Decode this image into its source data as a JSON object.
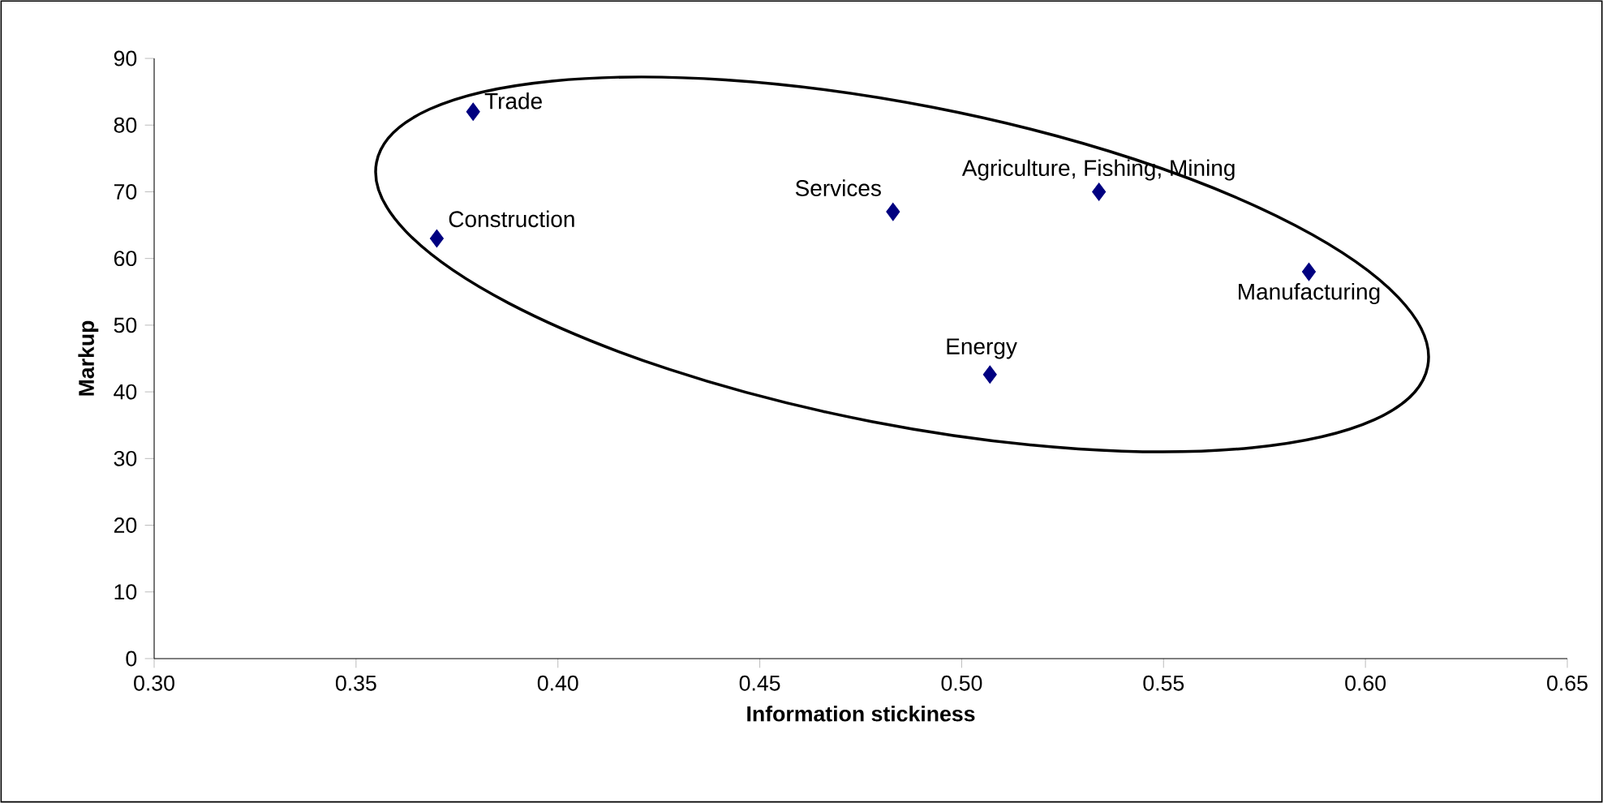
{
  "chart_data": {
    "type": "scatter",
    "xlabel": "Information stickiness",
    "ylabel": "Markup",
    "x": [
      0.379,
      0.37,
      0.483,
      0.534,
      0.586,
      0.507
    ],
    "values": [
      82,
      63,
      67,
      70,
      58,
      42.6
    ],
    "color": "#000080",
    "marker": "diamond",
    "xlim": [
      0.3,
      0.65
    ],
    "xticks": [
      {
        "value": 0.3,
        "label": "0.30"
      },
      {
        "value": 0.35,
        "label": "0.35"
      },
      {
        "value": 0.4,
        "label": "0.40"
      },
      {
        "value": 0.45,
        "label": "0.45"
      },
      {
        "value": 0.5,
        "label": "0.50"
      },
      {
        "value": 0.55,
        "label": "0.55"
      },
      {
        "value": 0.6,
        "label": "0.60"
      },
      {
        "value": 0.65,
        "label": "0.65"
      }
    ],
    "ylim": [
      0,
      90
    ],
    "yticks": [
      0,
      10,
      20,
      30,
      40,
      50,
      60,
      70,
      80,
      90
    ],
    "annotations": [
      {
        "text": "Trade",
        "x": 0.379,
        "y": 82
      },
      {
        "text": "Construction",
        "x": 0.37,
        "y": 63
      },
      {
        "text": "Services",
        "x": 0.483,
        "y": 67
      },
      {
        "text": "Agriculture, Fishing, Mining",
        "x": 0.534,
        "y": 70
      },
      {
        "text": "Manufacturing",
        "x": 0.586,
        "y": 58
      },
      {
        "text": "Energy",
        "x": 0.507,
        "y": 42.6
      }
    ]
  }
}
